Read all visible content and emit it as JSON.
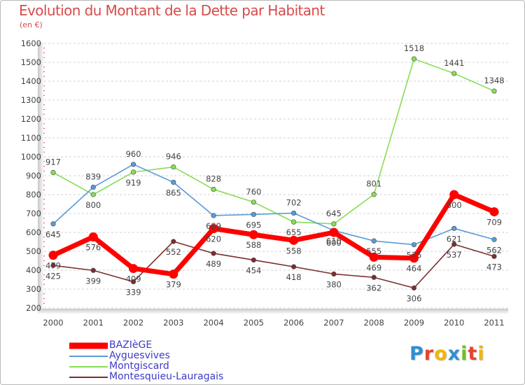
{
  "header": {
    "title": "Evolution du Montant de la Dette par Habitant",
    "subtitle": "(en €)"
  },
  "chart_data": {
    "type": "line",
    "title": "Evolution du Montant de la Dette par Habitant",
    "subtitle": "(en €)",
    "xlabel": "",
    "ylabel": "",
    "ylim": [
      200,
      1600
    ],
    "yticks": [
      200,
      300,
      400,
      500,
      600,
      700,
      800,
      900,
      1000,
      1100,
      1200,
      1300,
      1400,
      1500,
      1600
    ],
    "x": [
      2000,
      2001,
      2002,
      2003,
      2004,
      2005,
      2006,
      2007,
      2008,
      2009,
      2010,
      2011
    ],
    "x_labels": [
      "2000",
      "2001",
      "2002",
      "2003",
      "2004",
      "2005",
      "2006",
      "2007",
      "2008",
      "2009",
      "2010",
      "2011"
    ],
    "grid": "horizontal dashed",
    "legend_position": "bottom-left",
    "series": [
      {
        "name": "BAZIèGE",
        "color": "#ff0000",
        "values": [
          479,
          576,
          409,
          379,
          620,
          588,
          558,
          600,
          469,
          464,
          800,
          709
        ]
      },
      {
        "name": "Ayguesvives",
        "color": "#5a9bd5",
        "values": [
          645,
          839,
          960,
          865,
          689,
          695,
          702,
          610,
          555,
          535,
          621,
          562
        ]
      },
      {
        "name": "Montgiscard",
        "color": "#88dd55",
        "values": [
          917,
          800,
          919,
          946,
          828,
          760,
          655,
          645,
          801,
          1518,
          1441,
          1348
        ]
      },
      {
        "name": "Montesquieu-Lauragais",
        "color": "#7a2e2e",
        "values": [
          425,
          399,
          339,
          552,
          489,
          454,
          418,
          380,
          362,
          306,
          537,
          473
        ]
      }
    ]
  },
  "logo": {
    "letters": [
      "P",
      "r",
      "o",
      "x",
      "i",
      "t",
      "i"
    ],
    "colors": [
      "#2e8fd6",
      "#e8432e",
      "#f2b600",
      "#2e8fd6",
      "#6cc020",
      "#e8432e",
      "#f2b600"
    ]
  }
}
